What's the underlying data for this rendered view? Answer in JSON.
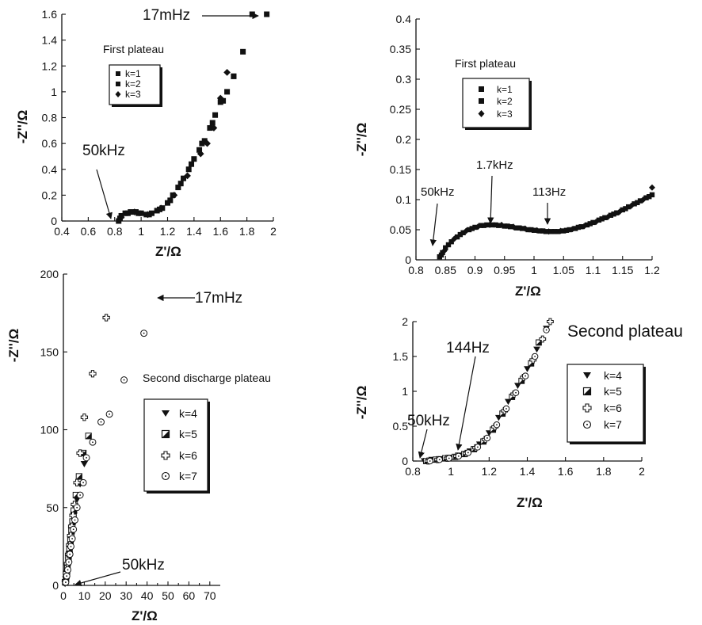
{
  "chart_data": [
    {
      "id": "p1",
      "type": "scatter",
      "xlabel": "Z'/Ω",
      "ylabel": "-Z''/Ω",
      "xlim": [
        0.4,
        2.0
      ],
      "ylim": [
        0,
        1.6
      ],
      "xticks": [
        "0.4",
        "0.6",
        "0.8",
        "1",
        "1.2",
        "1.4",
        "1.6",
        "1.8",
        "2"
      ],
      "yticks": [
        "0",
        "0.2",
        "0.4",
        "0.6",
        "0.8",
        "1",
        "1.2",
        "1.4",
        "1.6"
      ],
      "legend_title": "First plateau",
      "series": [
        {
          "name": "k=1",
          "marker": "square",
          "x": [
            0.83,
            0.85,
            0.88,
            0.92,
            0.96,
            1.0,
            1.04,
            1.08,
            1.12,
            1.16,
            1.2,
            1.24,
            1.28,
            1.32,
            1.36,
            1.4,
            1.44,
            1.48,
            1.52,
            1.56,
            1.6,
            1.65,
            1.7,
            1.77,
            1.84,
            1.95
          ],
          "y": [
            0.0,
            0.04,
            0.06,
            0.07,
            0.07,
            0.06,
            0.05,
            0.06,
            0.08,
            0.1,
            0.14,
            0.2,
            0.26,
            0.33,
            0.4,
            0.48,
            0.55,
            0.62,
            0.72,
            0.82,
            0.92,
            1.0,
            1.12,
            1.31,
            1.6,
            1.6
          ]
        },
        {
          "name": "k=2",
          "marker": "square",
          "x": [
            0.84,
            0.9,
            0.98,
            1.06,
            1.14,
            1.22,
            1.3,
            1.38,
            1.46,
            1.54,
            1.62,
            1.7
          ],
          "y": [
            0.02,
            0.06,
            0.06,
            0.05,
            0.09,
            0.16,
            0.29,
            0.44,
            0.6,
            0.76,
            0.93,
            1.12
          ]
        },
        {
          "name": "k=3",
          "marker": "diamond",
          "x": [
            0.85,
            0.95,
            1.05,
            1.15,
            1.25,
            1.35,
            1.45,
            1.5,
            1.55,
            1.6,
            1.65
          ],
          "y": [
            0.03,
            0.07,
            0.05,
            0.1,
            0.2,
            0.35,
            0.52,
            0.6,
            0.72,
            0.95,
            1.15
          ]
        }
      ],
      "annotations": [
        {
          "text": "17mHz",
          "arrow": "right"
        },
        {
          "text": "50kHz",
          "arrow": "down"
        }
      ]
    },
    {
      "id": "p2",
      "type": "scatter",
      "xlabel": "Z'/Ω",
      "ylabel": "-Z''/Ω",
      "xlim": [
        0.8,
        1.2
      ],
      "ylim": [
        0,
        0.4
      ],
      "xticks": [
        "0.8",
        "0.85",
        "0.9",
        "0.95",
        "1",
        "1.05",
        "1.1",
        "1.15",
        "1.2"
      ],
      "yticks": [
        "0",
        "0.05",
        "0.1",
        "0.15",
        "0.2",
        "0.25",
        "0.3",
        "0.35",
        "0.4"
      ],
      "legend_title": "First plateau",
      "series": [
        {
          "name": "k=1",
          "marker": "square",
          "x": [
            0.84,
            0.845,
            0.85,
            0.86,
            0.87,
            0.88,
            0.89,
            0.9,
            0.91,
            0.92,
            0.93,
            0.94,
            0.95,
            0.96,
            0.97,
            0.98,
            0.99,
            1.0,
            1.01,
            1.02,
            1.03,
            1.04,
            1.05,
            1.06,
            1.07,
            1.08,
            1.09,
            1.1,
            1.11,
            1.12,
            1.13,
            1.14,
            1.15,
            1.16,
            1.17,
            1.18,
            1.19,
            1.2
          ],
          "y": [
            0.005,
            0.012,
            0.02,
            0.03,
            0.038,
            0.045,
            0.05,
            0.054,
            0.057,
            0.058,
            0.058,
            0.057,
            0.056,
            0.055,
            0.053,
            0.052,
            0.05,
            0.049,
            0.048,
            0.047,
            0.047,
            0.047,
            0.048,
            0.05,
            0.052,
            0.055,
            0.058,
            0.062,
            0.066,
            0.07,
            0.074,
            0.078,
            0.083,
            0.088,
            0.093,
            0.098,
            0.103,
            0.108
          ]
        },
        {
          "name": "k=2",
          "marker": "square",
          "x": [
            0.843,
            0.855,
            0.875,
            0.895,
            0.915,
            0.935,
            0.955,
            0.975,
            0.995,
            1.015,
            1.035,
            1.055,
            1.075,
            1.095,
            1.115,
            1.135,
            1.155,
            1.175,
            1.195
          ],
          "y": [
            0.008,
            0.025,
            0.042,
            0.052,
            0.057,
            0.058,
            0.056,
            0.053,
            0.05,
            0.048,
            0.047,
            0.049,
            0.054,
            0.06,
            0.068,
            0.076,
            0.085,
            0.095,
            0.105
          ]
        },
        {
          "name": "k=3",
          "marker": "diamond",
          "x": [
            0.848,
            0.865,
            0.885,
            0.905,
            0.925,
            0.945,
            0.965,
            0.985,
            1.005,
            1.025,
            1.045,
            1.065,
            1.085,
            1.105,
            1.125,
            1.145,
            1.165,
            1.185,
            1.2
          ],
          "y": [
            0.015,
            0.035,
            0.048,
            0.055,
            0.058,
            0.058,
            0.055,
            0.052,
            0.049,
            0.047,
            0.048,
            0.051,
            0.056,
            0.063,
            0.071,
            0.08,
            0.09,
            0.1,
            0.12
          ]
        }
      ],
      "annotations": [
        {
          "text": "50kHz",
          "arrow": "down"
        },
        {
          "text": "1.7kHz",
          "arrow": "down"
        },
        {
          "text": "113Hz",
          "arrow": "down"
        }
      ]
    },
    {
      "id": "p3",
      "type": "scatter",
      "xlabel": "Z'/Ω",
      "ylabel": "-Z''/Ω",
      "xlim": [
        0,
        75
      ],
      "ylim": [
        0,
        200
      ],
      "xticks": [
        "0",
        "10",
        "20",
        "30",
        "40",
        "50",
        "60",
        "70"
      ],
      "xminorticks": [
        5,
        15,
        25,
        35,
        45,
        55,
        65
      ],
      "yticks": [
        "0",
        "50",
        "100",
        "150",
        "200"
      ],
      "legend_title": "Second discharge plateau",
      "series": [
        {
          "name": "k=4",
          "marker": "triangle-down",
          "x": [
            0.8,
            1.2,
            1.6,
            2.0,
            2.4,
            2.8,
            3.2,
            3.6,
            4.0,
            4.5,
            5.0,
            5.5,
            6.5,
            8.0,
            10.0
          ],
          "y": [
            1,
            4,
            8,
            12,
            16,
            20,
            25,
            30,
            35,
            40,
            45,
            50,
            55,
            65,
            78
          ]
        },
        {
          "name": "k=5",
          "marker": "half-square",
          "x": [
            0.9,
            1.4,
            1.9,
            2.4,
            2.9,
            3.4,
            3.9,
            4.4,
            5.0,
            6.0,
            7.5,
            9.5,
            12.0
          ],
          "y": [
            2,
            6,
            11,
            17,
            23,
            29,
            35,
            41,
            48,
            58,
            70,
            85,
            96
          ]
        },
        {
          "name": "k=6",
          "marker": "cross-open",
          "x": [
            1.0,
            1.5,
            2.0,
            2.5,
            3.0,
            3.5,
            4.0,
            4.6,
            5.3,
            6.5,
            8.0,
            10.0,
            14.0,
            20.5
          ],
          "y": [
            3,
            8,
            14,
            20,
            26,
            32,
            38,
            45,
            52,
            66,
            85,
            108,
            136,
            172
          ]
        },
        {
          "name": "k=7",
          "marker": "circle-dot",
          "x": [
            1.1,
            1.6,
            2.1,
            2.6,
            3.1,
            3.6,
            4.2,
            4.8,
            5.5,
            6.5,
            8.0,
            9.5,
            11.0,
            14.0,
            18.0,
            22.0,
            29.0,
            38.5
          ],
          "y": [
            2,
            6,
            10,
            15,
            20,
            25,
            30,
            36,
            42,
            50,
            58,
            66,
            82,
            92,
            105,
            110,
            132,
            162
          ]
        }
      ],
      "annotations": [
        {
          "text": "17mHz",
          "arrow": "left"
        },
        {
          "text": "50kHz",
          "arrow": "left"
        }
      ]
    },
    {
      "id": "p4",
      "type": "scatter",
      "xlabel": "Z'/Ω",
      "ylabel": "-Z''/Ω",
      "xlim": [
        0.8,
        2.0
      ],
      "ylim": [
        0,
        2.0
      ],
      "xticks": [
        "0.8",
        "1",
        "1.2",
        "1.4",
        "1.6",
        "1.8",
        "2"
      ],
      "yticks": [
        "0",
        "0.5",
        "1",
        "1.5",
        "2"
      ],
      "legend_title": "Second plateau",
      "series": [
        {
          "name": "k=4",
          "marker": "triangle-down",
          "x": [
            0.86,
            0.9,
            0.95,
            1.0,
            1.05,
            1.1,
            1.15,
            1.2,
            1.25,
            1.3,
            1.35,
            1.4,
            1.45,
            1.5
          ],
          "y": [
            0.0,
            0.02,
            0.03,
            0.05,
            0.08,
            0.14,
            0.24,
            0.4,
            0.62,
            0.85,
            1.08,
            1.32,
            1.6,
            1.9
          ]
        },
        {
          "name": "k=5",
          "marker": "half-square",
          "x": [
            0.87,
            0.92,
            0.97,
            1.02,
            1.07,
            1.12,
            1.17,
            1.22,
            1.27,
            1.32,
            1.37,
            1.42,
            1.46
          ],
          "y": [
            0.0,
            0.02,
            0.04,
            0.06,
            0.1,
            0.17,
            0.28,
            0.45,
            0.68,
            0.92,
            1.15,
            1.4,
            1.7
          ]
        },
        {
          "name": "k=6",
          "marker": "cross-open",
          "x": [
            0.88,
            0.93,
            0.98,
            1.03,
            1.08,
            1.13,
            1.18,
            1.23,
            1.28,
            1.33,
            1.38,
            1.43,
            1.48,
            1.52
          ],
          "y": [
            0.0,
            0.02,
            0.04,
            0.07,
            0.11,
            0.19,
            0.31,
            0.49,
            0.72,
            0.96,
            1.2,
            1.45,
            1.75,
            2.0
          ]
        },
        {
          "name": "k=7",
          "marker": "circle-dot",
          "x": [
            0.89,
            0.94,
            0.99,
            1.04,
            1.09,
            1.14,
            1.19,
            1.24,
            1.29,
            1.34,
            1.39,
            1.44,
            1.5
          ],
          "y": [
            0.0,
            0.02,
            0.04,
            0.07,
            0.12,
            0.2,
            0.33,
            0.52,
            0.75,
            0.98,
            1.22,
            1.5,
            1.88
          ]
        }
      ],
      "annotations": [
        {
          "text": "144Hz",
          "arrow": "down"
        },
        {
          "text": "50kHz",
          "arrow": "down"
        }
      ]
    }
  ]
}
